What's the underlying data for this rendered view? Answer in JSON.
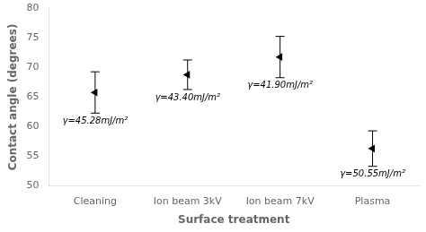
{
  "chart_data": {
    "type": "scatter",
    "xlabel": "Surface treatment",
    "ylabel": "Contact angle (degrees)",
    "categories": [
      "Cleaning",
      "Ion beam 3kV",
      "Ion beam 7kV",
      "Plasma"
    ],
    "values": [
      65.8,
      68.8,
      71.8,
      56.3
    ],
    "errors": [
      3.5,
      2.5,
      3.5,
      3.0
    ],
    "annotations": [
      "γ=45.28mJ/m²",
      "γ=43.40mJ/m²",
      "γ=41.90mJ/m²",
      "γ=50.55mJ/m²"
    ],
    "color": "black",
    "marker": "triangle_left",
    "ylim": [
      50,
      80
    ],
    "yticks": [
      50,
      55,
      60,
      65,
      70,
      75,
      80
    ],
    "grid": false
  }
}
